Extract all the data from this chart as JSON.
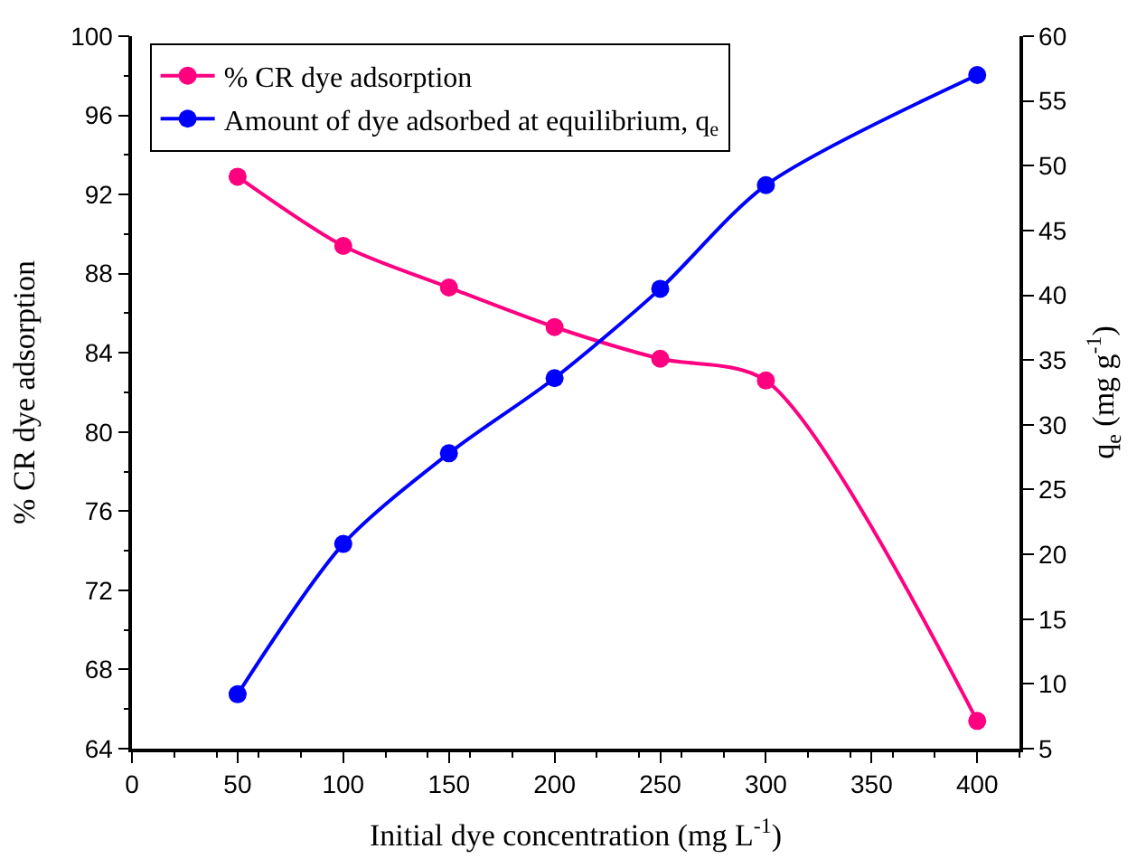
{
  "chart_data": {
    "type": "line",
    "xlabel": "Initial dye concentration (mg L$^{-1}$)",
    "ylabel": "% CR dye adsorption",
    "y2label": "q$_{e}$ (mg g$^{-1}$)",
    "x": [
      50,
      100,
      150,
      200,
      250,
      300,
      400
    ],
    "series": [
      {
        "name": "% CR dye adsorption",
        "color": "#ff0080",
        "values": [
          92.9,
          89.4,
          87.3,
          85.3,
          83.7,
          82.6,
          65.4
        ]
      },
      {
        "name": "Amount of dye adsorbed at equilibrium, q$_{e}$",
        "color": "#0000ff",
        "axis": "y2",
        "values": [
          9.2,
          20.8,
          27.8,
          33.6,
          40.5,
          48.5,
          57.0
        ]
      }
    ],
    "xlim": [
      0,
      420
    ],
    "xticks": [
      0,
      50,
      100,
      150,
      200,
      250,
      300,
      350,
      400
    ],
    "ylim": [
      64,
      100
    ],
    "yticks": [
      64,
      68,
      72,
      76,
      80,
      84,
      88,
      92,
      96,
      100
    ],
    "y2lim": [
      5,
      60
    ],
    "y2ticks": [
      5,
      10,
      15,
      20,
      25,
      30,
      35,
      40,
      45,
      50,
      55,
      60
    ],
    "marker": "circle",
    "line_style": "solid",
    "legend": "top left"
  }
}
